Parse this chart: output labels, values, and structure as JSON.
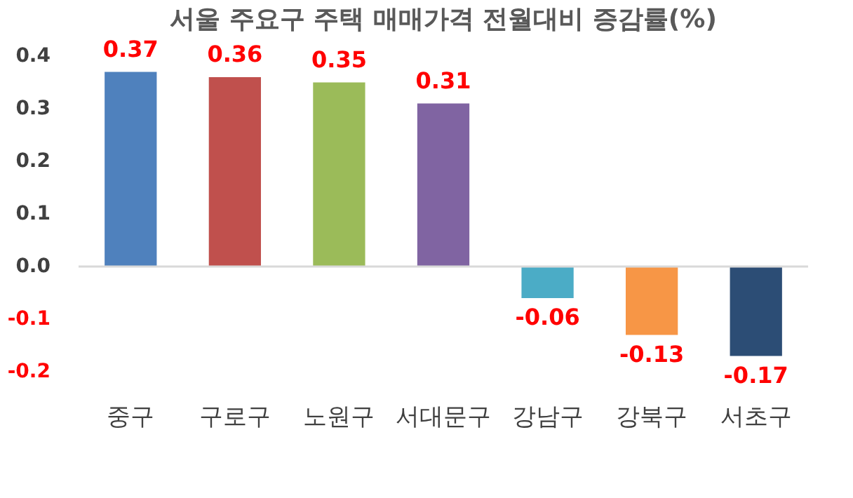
{
  "chart_data": {
    "type": "bar",
    "title": "서울 주요구 주택 매매가격 전월대비 증감률(%)",
    "categories": [
      "중구",
      "구로구",
      "노원구",
      "서대문구",
      "강남구",
      "강북구",
      "서초구"
    ],
    "values": [
      0.37,
      0.36,
      0.35,
      0.31,
      -0.06,
      -0.13,
      -0.17
    ],
    "colors": [
      "#4f81bd",
      "#c0504d",
      "#9bbb59",
      "#8064a2",
      "#4bacc6",
      "#f79646",
      "#2c4d75"
    ],
    "ylim": [
      -0.2,
      0.4
    ],
    "yticks": [
      {
        "value": -0.2,
        "label": "-0.2"
      },
      {
        "value": -0.1,
        "label": "-0.1"
      },
      {
        "value": 0,
        "label": "0.0"
      },
      {
        "value": 0.1,
        "label": "0.1"
      },
      {
        "value": 0.2,
        "label": "0.2"
      },
      {
        "value": 0.3,
        "label": "0.3"
      },
      {
        "value": 0.4,
        "label": "0.4"
      }
    ],
    "ref_lines": [
      {
        "axis": "y",
        "value": 0,
        "color": "#d9d9d9"
      }
    ],
    "data_labels": true
  }
}
